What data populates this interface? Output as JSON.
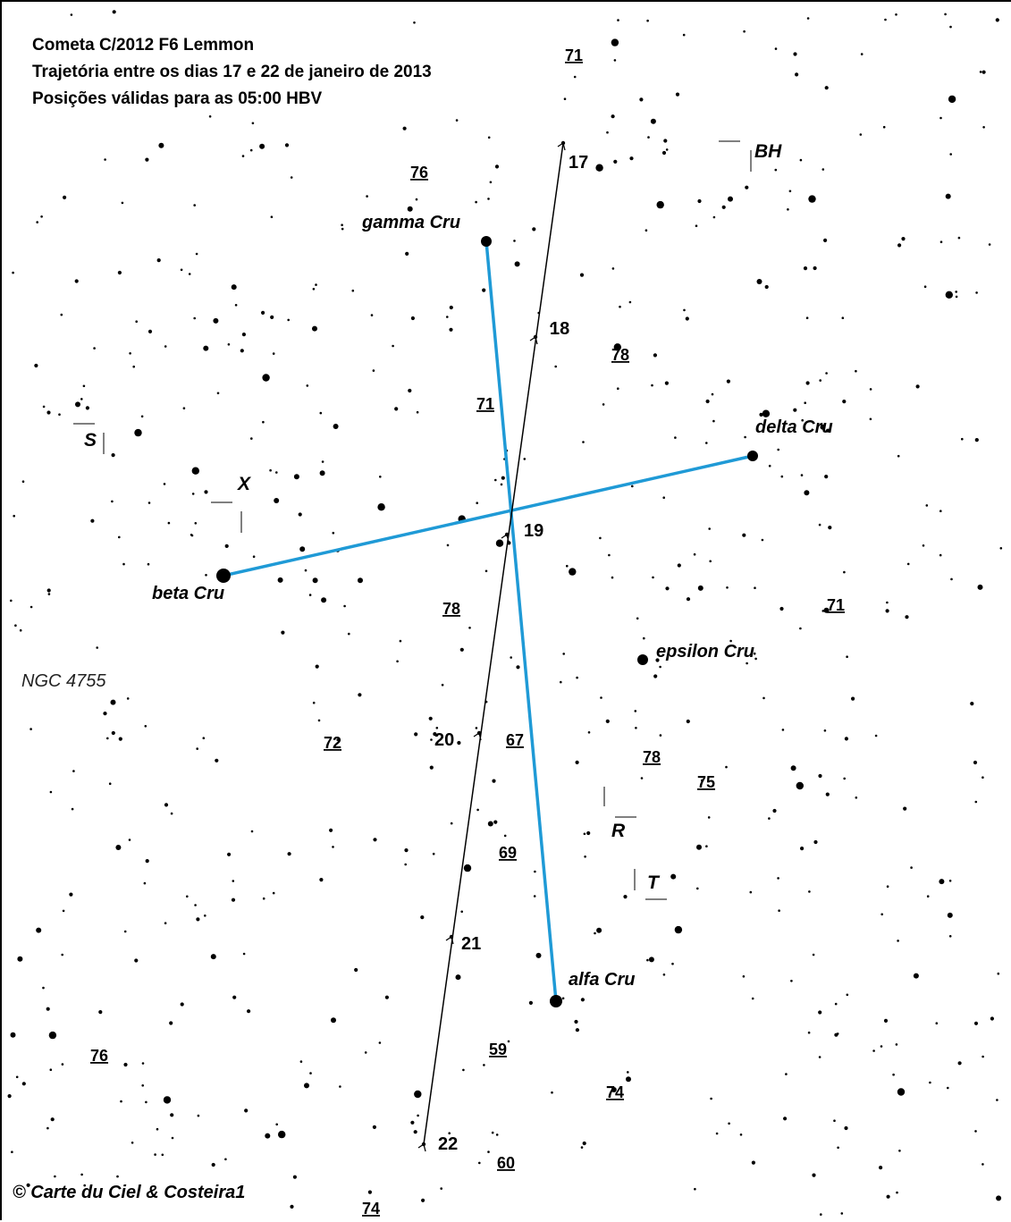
{
  "title": {
    "line1": "Cometa C/2012 F6 Lemmon",
    "line2": "Trajetória entre os dias 17 e 22 de janeiro de 2013",
    "line3": "Posições válidas para as 05:00 HBV"
  },
  "credit": "© Carte du Ciel & Costeira1",
  "colors": {
    "asterism": "#1f9ad6",
    "trajectory": "#000000",
    "stars": "#000000"
  },
  "named_stars": {
    "gamma": "gamma Cru",
    "delta": "delta Cru",
    "beta": "beta Cru",
    "alpha": "alfa Cru",
    "epsilon": "epsilon Cru"
  },
  "ngc": "NGC 4755",
  "variables": {
    "bh": "BH",
    "s": "S",
    "x": "X",
    "r": "R",
    "t": "T"
  },
  "comet_dates": [
    "17",
    "18",
    "19",
    "20",
    "21",
    "22"
  ],
  "magnitudes": [
    "71",
    "76",
    "78",
    "71",
    "78",
    "71",
    "72",
    "67",
    "78",
    "75",
    "69",
    "76",
    "59",
    "74",
    "60",
    "74"
  ]
}
